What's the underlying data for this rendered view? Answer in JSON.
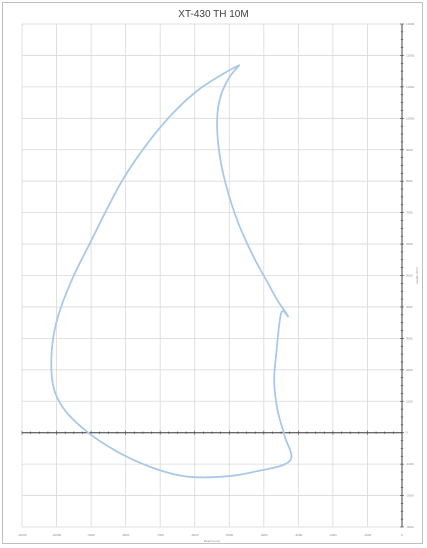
{
  "chart_data": {
    "type": "line",
    "title": "XT-430 TH 10M",
    "xlabel": "Reach (mm)",
    "ylabel": "Height (mm)",
    "xlim": [
      -11000,
      0
    ],
    "ylim": [
      -3000,
      13000
    ],
    "x_ticks": [
      "-11000",
      "-10000",
      "-9000",
      "-8000",
      "-7000",
      "-6000",
      "-5000",
      "-4000",
      "-3000",
      "-2000",
      "-1000",
      "0"
    ],
    "y_ticks": [
      "-3000",
      "-2000",
      "-1000",
      "0",
      "1000",
      "2000",
      "3000",
      "4000",
      "5000",
      "6000",
      "7000",
      "8000",
      "9000",
      "10000",
      "11000",
      "12000",
      "13000"
    ],
    "grid": true,
    "series": [
      {
        "color": "#a9c8ea",
        "x": [
          -4700,
          -5200,
          -5900,
          -6600,
          -7300,
          -8000,
          -8500,
          -9000,
          -9500,
          -9900,
          -10100,
          -10150,
          -10050,
          -9750,
          -9300,
          -8700,
          -7900,
          -7000,
          -6200,
          -5200,
          -4300,
          -3250,
          -3400,
          -3600,
          -3700,
          -3650,
          -3500,
          -3300,
          -3600,
          -3900,
          -4300,
          -4750,
          -5100,
          -5300,
          -5350,
          -5250,
          -5000,
          -4700
        ],
        "y": [
          11700,
          11400,
          10900,
          10200,
          9300,
          8200,
          7200,
          6100,
          5000,
          3900,
          3000,
          2000,
          1300,
          700,
          200,
          -300,
          -800,
          -1200,
          -1400,
          -1400,
          -1250,
          -900,
          -100,
          700,
          1600,
          2400,
          3800,
          3700,
          4200,
          4800,
          5600,
          6700,
          7900,
          9000,
          10000,
          10700,
          11300,
          11700
        ]
      }
    ]
  }
}
